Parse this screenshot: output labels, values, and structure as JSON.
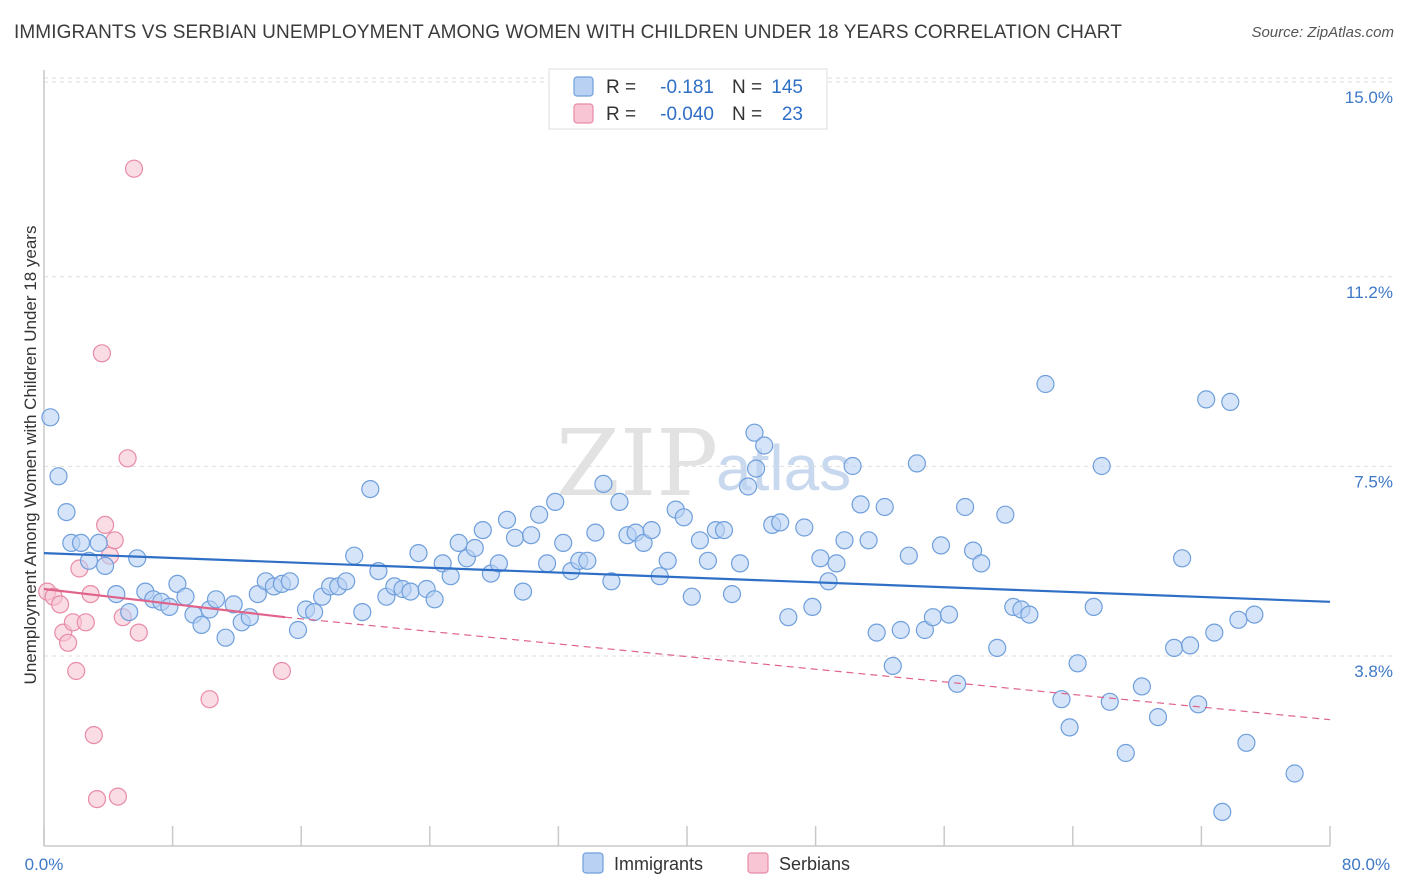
{
  "title": "IMMIGRANTS VS SERBIAN UNEMPLOYMENT AMONG WOMEN WITH CHILDREN UNDER 18 YEARS CORRELATION CHART",
  "source": "Source: ZipAtlas.com",
  "watermark": {
    "zip": "ZIP",
    "atlas": "atlas"
  },
  "legend": {
    "rows": [
      {
        "r_label": "R =",
        "r_value": "-0.181",
        "n_label": "N =",
        "n_value": "145"
      },
      {
        "r_label": "R =",
        "r_value": "-0.040",
        "n_label": "N =",
        "n_value": "23"
      }
    ]
  },
  "colors": {
    "immigrants_fill": "#b9d2f3",
    "immigrants_stroke": "#6f9fdc",
    "immigrants_line": "#2f6fc6",
    "serbians_fill": "#f7c5d3",
    "serbians_stroke": "#e88ba6",
    "serbians_line": "#e0638a",
    "grid": "#dddddd",
    "tick_text": "#3e78c6"
  },
  "chart_data": {
    "type": "scatter",
    "title": "IMMIGRANTS VS SERBIAN UNEMPLOYMENT AMONG WOMEN WITH CHILDREN UNDER 18 YEARS CORRELATION CHART",
    "xlabel": "",
    "ylabel": "Unemployment Among Women with Children Under 18 years",
    "xlim": [
      0,
      80
    ],
    "ylim": [
      0,
      15.5
    ],
    "x_tick_labels": [
      "0.0%",
      "80.0%"
    ],
    "y_ticks": [
      3.8,
      7.5,
      11.2,
      15.0
    ],
    "y_tick_labels": [
      "3.8%",
      "7.5%",
      "11.2%",
      "15.0%"
    ],
    "grid": "horizontal dashed",
    "legend_position": "bottom-center",
    "series": [
      {
        "name": "Immigrants",
        "points": [
          [
            0.4,
            8.75
          ],
          [
            0.9,
            7.6
          ],
          [
            1.4,
            6.9
          ],
          [
            1.7,
            6.3
          ],
          [
            2.3,
            6.3
          ],
          [
            2.8,
            5.95
          ],
          [
            3.4,
            6.3
          ],
          [
            3.8,
            5.85
          ],
          [
            4.5,
            5.3
          ],
          [
            5.3,
            4.95
          ],
          [
            5.8,
            6.0
          ],
          [
            6.3,
            5.35
          ],
          [
            6.8,
            5.2
          ],
          [
            7.3,
            5.15
          ],
          [
            7.8,
            5.05
          ],
          [
            8.3,
            5.5
          ],
          [
            8.8,
            5.25
          ],
          [
            9.3,
            4.9
          ],
          [
            9.8,
            4.7
          ],
          [
            10.3,
            5.0
          ],
          [
            10.7,
            5.2
          ],
          [
            11.3,
            4.45
          ],
          [
            11.8,
            5.1
          ],
          [
            12.3,
            4.75
          ],
          [
            12.8,
            4.85
          ],
          [
            13.3,
            5.3
          ],
          [
            13.8,
            5.55
          ],
          [
            14.3,
            5.45
          ],
          [
            14.8,
            5.5
          ],
          [
            15.3,
            5.55
          ],
          [
            15.8,
            4.6
          ],
          [
            16.3,
            5.0
          ],
          [
            16.8,
            4.95
          ],
          [
            17.3,
            5.25
          ],
          [
            17.8,
            5.45
          ],
          [
            18.3,
            5.45
          ],
          [
            18.8,
            5.55
          ],
          [
            19.3,
            6.05
          ],
          [
            19.8,
            4.95
          ],
          [
            20.3,
            7.35
          ],
          [
            20.8,
            5.75
          ],
          [
            21.3,
            5.25
          ],
          [
            21.8,
            5.45
          ],
          [
            22.3,
            5.4
          ],
          [
            22.8,
            5.35
          ],
          [
            23.3,
            6.1
          ],
          [
            23.8,
            5.4
          ],
          [
            24.3,
            5.2
          ],
          [
            24.8,
            5.9
          ],
          [
            25.3,
            5.65
          ],
          [
            25.8,
            6.3
          ],
          [
            26.3,
            6.0
          ],
          [
            26.8,
            6.2
          ],
          [
            27.3,
            6.55
          ],
          [
            27.8,
            5.7
          ],
          [
            28.3,
            5.9
          ],
          [
            28.8,
            6.75
          ],
          [
            29.3,
            6.4
          ],
          [
            29.8,
            5.35
          ],
          [
            30.3,
            6.45
          ],
          [
            30.8,
            6.85
          ],
          [
            31.3,
            5.9
          ],
          [
            31.8,
            7.1
          ],
          [
            32.3,
            6.3
          ],
          [
            32.8,
            5.75
          ],
          [
            33.3,
            5.95
          ],
          [
            33.8,
            5.95
          ],
          [
            34.3,
            6.5
          ],
          [
            34.8,
            7.45
          ],
          [
            35.3,
            5.55
          ],
          [
            35.8,
            7.1
          ],
          [
            36.3,
            6.45
          ],
          [
            36.8,
            6.5
          ],
          [
            37.3,
            6.3
          ],
          [
            37.8,
            6.55
          ],
          [
            38.3,
            5.65
          ],
          [
            38.8,
            5.95
          ],
          [
            39.3,
            6.95
          ],
          [
            39.8,
            6.8
          ],
          [
            40.3,
            5.25
          ],
          [
            40.8,
            6.35
          ],
          [
            41.3,
            5.95
          ],
          [
            41.8,
            6.55
          ],
          [
            42.3,
            6.55
          ],
          [
            42.8,
            5.3
          ],
          [
            43.3,
            5.9
          ],
          [
            43.8,
            7.4
          ],
          [
            44.2,
            8.45
          ],
          [
            44.3,
            7.75
          ],
          [
            44.8,
            8.2
          ],
          [
            45.3,
            6.65
          ],
          [
            45.8,
            6.7
          ],
          [
            46.3,
            4.85
          ],
          [
            47.3,
            6.6
          ],
          [
            47.8,
            5.05
          ],
          [
            48.3,
            6.0
          ],
          [
            48.8,
            5.55
          ],
          [
            49.3,
            5.9
          ],
          [
            49.8,
            6.35
          ],
          [
            50.3,
            7.8
          ],
          [
            50.8,
            7.05
          ],
          [
            51.3,
            6.35
          ],
          [
            51.8,
            4.55
          ],
          [
            52.3,
            7.0
          ],
          [
            52.8,
            3.9
          ],
          [
            53.3,
            4.6
          ],
          [
            53.8,
            6.05
          ],
          [
            54.3,
            7.85
          ],
          [
            54.8,
            4.6
          ],
          [
            55.3,
            4.85
          ],
          [
            55.8,
            6.25
          ],
          [
            56.3,
            4.9
          ],
          [
            56.8,
            3.55
          ],
          [
            57.3,
            7.0
          ],
          [
            57.8,
            6.15
          ],
          [
            58.3,
            5.9
          ],
          [
            59.3,
            4.25
          ],
          [
            59.8,
            6.85
          ],
          [
            60.3,
            5.05
          ],
          [
            60.8,
            5.0
          ],
          [
            61.3,
            4.9
          ],
          [
            62.3,
            9.4
          ],
          [
            63.3,
            3.25
          ],
          [
            63.8,
            2.7
          ],
          [
            64.3,
            3.95
          ],
          [
            65.3,
            5.05
          ],
          [
            65.8,
            7.8
          ],
          [
            66.3,
            3.2
          ],
          [
            67.3,
            2.2
          ],
          [
            68.3,
            3.5
          ],
          [
            69.3,
            2.9
          ],
          [
            70.3,
            4.25
          ],
          [
            70.8,
            6.0
          ],
          [
            71.3,
            4.3
          ],
          [
            71.8,
            3.15
          ],
          [
            72.3,
            9.1
          ],
          [
            72.8,
            4.55
          ],
          [
            73.3,
            1.05
          ],
          [
            73.8,
            9.05
          ],
          [
            74.3,
            4.8
          ],
          [
            74.8,
            2.4
          ],
          [
            75.3,
            4.9
          ],
          [
            77.8,
            1.8
          ]
        ]
      },
      {
        "name": "Serbians",
        "points": [
          [
            0.2,
            5.35
          ],
          [
            0.6,
            5.25
          ],
          [
            1.0,
            5.1
          ],
          [
            1.2,
            4.55
          ],
          [
            1.5,
            4.35
          ],
          [
            1.8,
            4.75
          ],
          [
            2.0,
            3.8
          ],
          [
            2.2,
            5.8
          ],
          [
            2.6,
            4.75
          ],
          [
            2.9,
            5.3
          ],
          [
            3.1,
            2.55
          ],
          [
            3.3,
            1.3
          ],
          [
            3.6,
            10.0
          ],
          [
            3.8,
            6.65
          ],
          [
            4.1,
            6.05
          ],
          [
            4.4,
            6.35
          ],
          [
            4.6,
            1.35
          ],
          [
            4.9,
            4.85
          ],
          [
            5.2,
            7.95
          ],
          [
            5.6,
            13.6
          ],
          [
            5.9,
            4.55
          ],
          [
            10.3,
            3.25
          ],
          [
            14.8,
            3.8
          ]
        ]
      }
    ],
    "trend_lines": [
      {
        "series": "Immigrants",
        "x": [
          0,
          80
        ],
        "y": [
          6.1,
          5.15
        ],
        "style": "solid"
      },
      {
        "series": "Serbians",
        "x": [
          0,
          15
        ],
        "y": [
          5.4,
          4.85
        ],
        "style": "solid"
      },
      {
        "series": "Serbians",
        "x": [
          15,
          80
        ],
        "y": [
          4.85,
          2.85
        ],
        "style": "dashed"
      }
    ]
  },
  "bottom_legend": [
    "Immigrants",
    "Serbians"
  ]
}
